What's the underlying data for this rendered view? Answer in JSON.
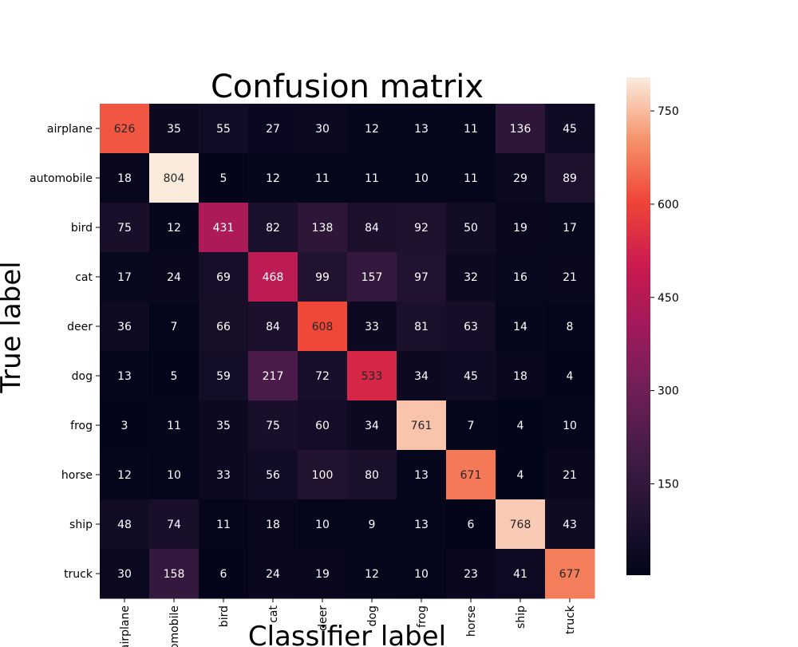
{
  "chart_data": {
    "type": "heatmap",
    "title": "Confusion matrix",
    "xlabel": "Classifier label",
    "ylabel": "True label",
    "x_categories": [
      "airplane",
      "automobile",
      "bird",
      "cat",
      "deer",
      "dog",
      "frog",
      "horse",
      "ship",
      "truck"
    ],
    "y_categories": [
      "airplane",
      "automobile",
      "bird",
      "cat",
      "deer",
      "dog",
      "frog",
      "horse",
      "ship",
      "truck"
    ],
    "matrix": [
      [
        626,
        35,
        55,
        27,
        30,
        12,
        13,
        11,
        136,
        45
      ],
      [
        18,
        804,
        5,
        12,
        11,
        11,
        10,
        11,
        29,
        89
      ],
      [
        75,
        12,
        431,
        82,
        138,
        84,
        92,
        50,
        19,
        17
      ],
      [
        17,
        24,
        69,
        468,
        99,
        157,
        97,
        32,
        16,
        21
      ],
      [
        36,
        7,
        66,
        84,
        608,
        33,
        81,
        63,
        14,
        8
      ],
      [
        13,
        5,
        59,
        217,
        72,
        533,
        34,
        45,
        18,
        4
      ],
      [
        3,
        11,
        35,
        75,
        60,
        34,
        761,
        7,
        4,
        10
      ],
      [
        12,
        10,
        33,
        56,
        100,
        80,
        13,
        671,
        4,
        21
      ],
      [
        48,
        74,
        11,
        18,
        10,
        9,
        13,
        6,
        768,
        43
      ],
      [
        30,
        158,
        6,
        24,
        19,
        12,
        10,
        23,
        41,
        677
      ]
    ],
    "color_range": [
      3,
      804
    ],
    "colorbar_ticks": [
      150,
      300,
      450,
      600,
      750
    ],
    "colormap": "rocket",
    "grid": false,
    "legend": "colorbar-right"
  }
}
